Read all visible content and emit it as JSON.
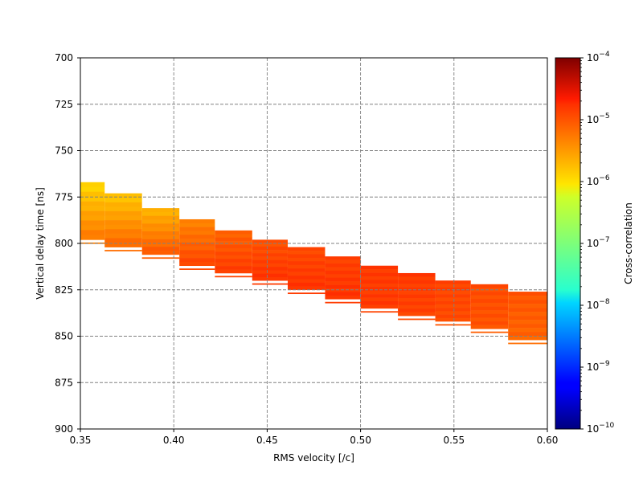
{
  "chart_data": {
    "type": "heatmap",
    "title": "",
    "xlabel": "RMS velocity [/c]",
    "ylabel": "Vertical delay time [ns]",
    "xlim": [
      0.35,
      0.6
    ],
    "ylim": [
      900,
      700
    ],
    "y_inverted": true,
    "x_ticks": [
      {
        "v": 0.35,
        "label": "0.35"
      },
      {
        "v": 0.4,
        "label": "0.40"
      },
      {
        "v": 0.45,
        "label": "0.45"
      },
      {
        "v": 0.5,
        "label": "0.50"
      },
      {
        "v": 0.55,
        "label": "0.55"
      },
      {
        "v": 0.6,
        "label": "0.60"
      }
    ],
    "y_ticks": [
      {
        "v": 700,
        "label": "700"
      },
      {
        "v": 725,
        "label": "725"
      },
      {
        "v": 750,
        "label": "750"
      },
      {
        "v": 775,
        "label": "775"
      },
      {
        "v": 800,
        "label": "800"
      },
      {
        "v": 825,
        "label": "825"
      },
      {
        "v": 850,
        "label": "850"
      },
      {
        "v": 875,
        "label": "875"
      },
      {
        "v": 900,
        "label": "900"
      }
    ],
    "grid": true,
    "colorbar": {
      "label": "Cross-correlation",
      "scale": "log",
      "colormap": "jet",
      "min_exp": -10,
      "max_exp": -4,
      "ticks": [
        {
          "exp": -10,
          "base": "10",
          "sup": "−10"
        },
        {
          "exp": -9,
          "base": "10",
          "sup": "−9"
        },
        {
          "exp": -8,
          "base": "10",
          "sup": "−8"
        },
        {
          "exp": -7,
          "base": "10",
          "sup": "−7"
        },
        {
          "exp": -6,
          "base": "10",
          "sup": "−6"
        },
        {
          "exp": -5,
          "base": "10",
          "sup": "−5"
        },
        {
          "exp": -4,
          "base": "10",
          "sup": "−4"
        }
      ]
    },
    "series": [
      {
        "x0": 0.35,
        "x1": 0.363,
        "t0": 767,
        "t1": 798,
        "c_top": -6.0,
        "c_bot": -5.4
      },
      {
        "x0": 0.363,
        "x1": 0.383,
        "t0": 773,
        "t1": 802,
        "c_top": -5.9,
        "c_bot": -5.3
      },
      {
        "x0": 0.383,
        "x1": 0.403,
        "t0": 781,
        "t1": 806,
        "c_top": -5.8,
        "c_bot": -5.2
      },
      {
        "x0": 0.403,
        "x1": 0.422,
        "t0": 787,
        "t1": 812,
        "c_top": -5.5,
        "c_bot": -5.1
      },
      {
        "x0": 0.422,
        "x1": 0.442,
        "t0": 793,
        "t1": 816,
        "c_top": -5.3,
        "c_bot": -5.05
      },
      {
        "x0": 0.442,
        "x1": 0.461,
        "t0": 798,
        "t1": 820,
        "c_top": -5.2,
        "c_bot": -5.0
      },
      {
        "x0": 0.461,
        "x1": 0.481,
        "t0": 802,
        "t1": 825,
        "c_top": -5.15,
        "c_bot": -5.0
      },
      {
        "x0": 0.481,
        "x1": 0.5,
        "t0": 807,
        "t1": 830,
        "c_top": -5.1,
        "c_bot": -5.0
      },
      {
        "x0": 0.5,
        "x1": 0.52,
        "t0": 812,
        "t1": 835,
        "c_top": -5.05,
        "c_bot": -5.05
      },
      {
        "x0": 0.52,
        "x1": 0.54,
        "t0": 816,
        "t1": 839,
        "c_top": -5.05,
        "c_bot": -5.1
      },
      {
        "x0": 0.54,
        "x1": 0.559,
        "t0": 820,
        "t1": 842,
        "c_top": -5.1,
        "c_bot": -5.15
      },
      {
        "x0": 0.559,
        "x1": 0.579,
        "t0": 822,
        "t1": 846,
        "c_top": -5.15,
        "c_bot": -5.2
      },
      {
        "x0": 0.579,
        "x1": 0.6,
        "t0": 826,
        "t1": 852,
        "c_top": -5.2,
        "c_bot": -5.3
      }
    ]
  }
}
